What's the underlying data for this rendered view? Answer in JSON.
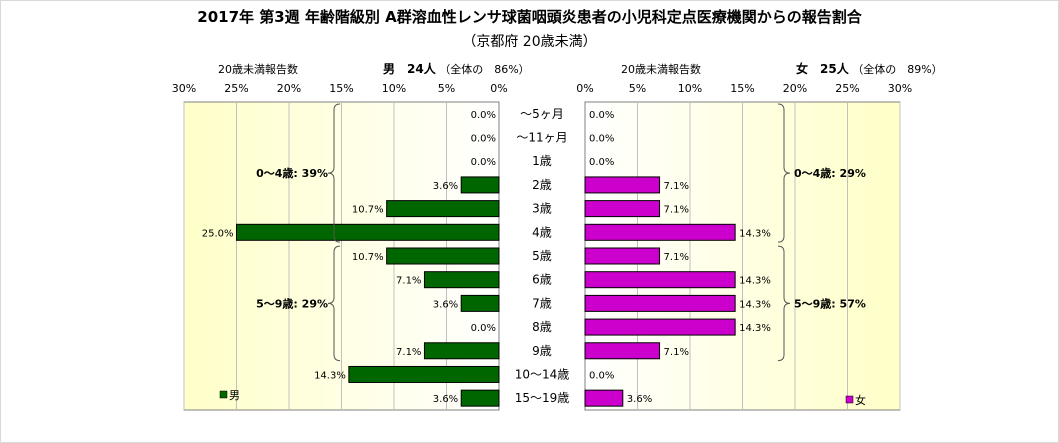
{
  "chart_data": {
    "type": "bar",
    "title": "2017年 第3週 年齢階級別 A群溶血性レンサ球菌咽頭炎患者の小児科定点医療機関からの報告割合",
    "subtitle": "（京都府 20歳未満）",
    "categories": [
      "～5ヶ月",
      "～11ヶ月",
      "1歳",
      "2歳",
      "3歳",
      "4歳",
      "5歳",
      "6歳",
      "7歳",
      "8歳",
      "9歳",
      "10～14歳",
      "15～19歳"
    ],
    "xlim": [
      0,
      30
    ],
    "tick_labels": [
      "0%",
      "5%",
      "10%",
      "15%",
      "20%",
      "25%",
      "30%"
    ],
    "grid": true,
    "series": [
      {
        "name": "男",
        "color": "#006600",
        "values": [
          0.0,
          0.0,
          0.0,
          3.6,
          10.7,
          25.0,
          10.7,
          7.1,
          3.6,
          0.0,
          7.1,
          14.3,
          3.6
        ],
        "labels": [
          "0.0%",
          "0.0%",
          "0.0%",
          "3.6%",
          "10.7%",
          "25.0%",
          "10.7%",
          "7.1%",
          "3.6%",
          "0.0%",
          "7.1%",
          "14.3%",
          "3.6%"
        ]
      },
      {
        "name": "女",
        "color": "#cc00cc",
        "values": [
          0.0,
          0.0,
          0.0,
          7.1,
          7.1,
          14.3,
          7.1,
          14.3,
          14.3,
          14.3,
          7.1,
          0.0,
          3.6
        ],
        "labels": [
          "0.0%",
          "0.0%",
          "0.0%",
          "7.1%",
          "7.1%",
          "14.3%",
          "7.1%",
          "14.3%",
          "14.3%",
          "14.3%",
          "7.1%",
          "0.0%",
          "3.6%"
        ]
      }
    ],
    "male_header": {
      "sub": "20歳未満報告数",
      "main": "男　24人",
      "note": "（全体の　86%）"
    },
    "female_header": {
      "sub": "20歳未満報告数",
      "main": "女　25人",
      "note": "（全体の　89%）"
    },
    "groups": [
      {
        "side": "male",
        "label": "0～4歳: 39%",
        "from": 0,
        "to": 5
      },
      {
        "side": "male",
        "label": "5～9歳: 29%",
        "from": 6,
        "to": 10
      },
      {
        "side": "female",
        "label": "0～4歳: 29%",
        "from": 0,
        "to": 5
      },
      {
        "side": "female",
        "label": "5～9歳: 57%",
        "from": 6,
        "to": 10
      }
    ],
    "legend": {
      "male": "男",
      "female": "女"
    }
  }
}
